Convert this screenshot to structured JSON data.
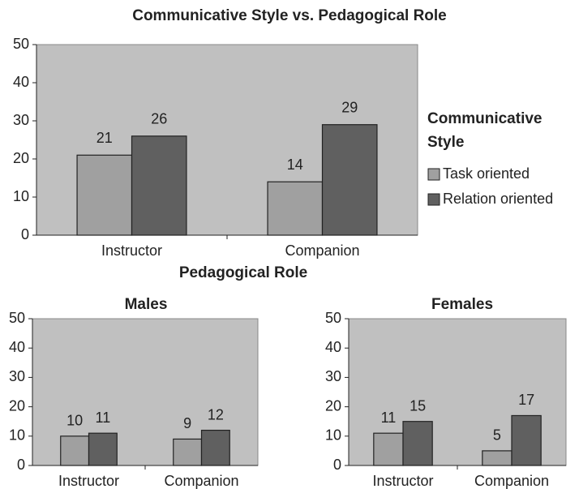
{
  "chart_data": [
    {
      "type": "bar",
      "title": "Communicative Style vs. Pedagogical Role",
      "x_label": "Pedagogical Role",
      "legend_title": "Communicative Style",
      "categories": [
        "Instructor",
        "Companion"
      ],
      "series": [
        {
          "name": "Task oriented",
          "color": "#a0a0a0",
          "values": [
            21,
            14
          ]
        },
        {
          "name": "Relation oriented",
          "color": "#606060",
          "values": [
            26,
            29
          ]
        }
      ],
      "ylim": [
        0,
        50
      ],
      "yticks": [
        0,
        10,
        20,
        30,
        40,
        50
      ],
      "legend": "right"
    },
    {
      "type": "bar",
      "title": "Males",
      "categories": [
        "Instructor",
        "Companion"
      ],
      "series": [
        {
          "color": "#a0a0a0",
          "values": [
            10,
            9
          ]
        },
        {
          "color": "#606060",
          "values": [
            11,
            12
          ]
        }
      ],
      "ylim": [
        0,
        50
      ],
      "yticks": [
        0,
        10,
        20,
        30,
        40,
        50
      ]
    },
    {
      "type": "bar",
      "title": "Females",
      "categories": [
        "Instructor",
        "Companion"
      ],
      "series": [
        {
          "color": "#a0a0a0",
          "values": [
            11,
            5
          ]
        },
        {
          "color": "#606060",
          "values": [
            15,
            17
          ]
        }
      ],
      "ylim": [
        0,
        50
      ],
      "yticks": [
        0,
        10,
        20,
        30,
        40,
        50
      ]
    }
  ]
}
